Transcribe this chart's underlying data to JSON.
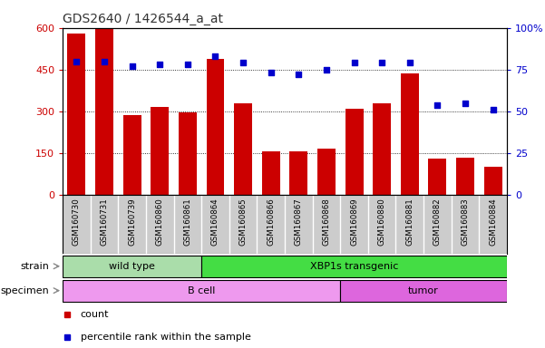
{
  "title": "GDS2640 / 1426544_a_at",
  "samples": [
    "GSM160730",
    "GSM160731",
    "GSM160739",
    "GSM160860",
    "GSM160861",
    "GSM160864",
    "GSM160865",
    "GSM160866",
    "GSM160867",
    "GSM160868",
    "GSM160869",
    "GSM160880",
    "GSM160881",
    "GSM160882",
    "GSM160883",
    "GSM160884"
  ],
  "counts": [
    580,
    595,
    285,
    315,
    295,
    490,
    330,
    155,
    155,
    165,
    310,
    330,
    435,
    130,
    135,
    100
  ],
  "percentiles": [
    80,
    80,
    77,
    78,
    78,
    83,
    79,
    73,
    72,
    75,
    79,
    79,
    79,
    54,
    55,
    51
  ],
  "ylim_left": [
    0,
    600
  ],
  "ylim_right": [
    0,
    100
  ],
  "yticks_left": [
    0,
    150,
    300,
    450,
    600
  ],
  "yticks_right": [
    0,
    25,
    50,
    75,
    100
  ],
  "bar_color": "#cc0000",
  "scatter_color": "#0000cc",
  "plot_bg_color": "#ffffff",
  "tick_area_bg": "#cccccc",
  "strain_groups": [
    {
      "label": "wild type",
      "start": 0,
      "end": 5,
      "color": "#aaddaa"
    },
    {
      "label": "XBP1s transgenic",
      "start": 5,
      "end": 16,
      "color": "#44dd44"
    }
  ],
  "specimen_groups": [
    {
      "label": "B cell",
      "start": 0,
      "end": 10,
      "color": "#ee99ee"
    },
    {
      "label": "tumor",
      "start": 10,
      "end": 16,
      "color": "#dd66dd"
    }
  ],
  "strain_label": "strain",
  "specimen_label": "specimen",
  "legend_count_label": "count",
  "legend_pct_label": "percentile rank within the sample",
  "title_color": "#333333",
  "left_axis_color": "#cc0000",
  "right_axis_color": "#0000cc",
  "grid_color": "#000000",
  "grid_linestyle": "dotted"
}
